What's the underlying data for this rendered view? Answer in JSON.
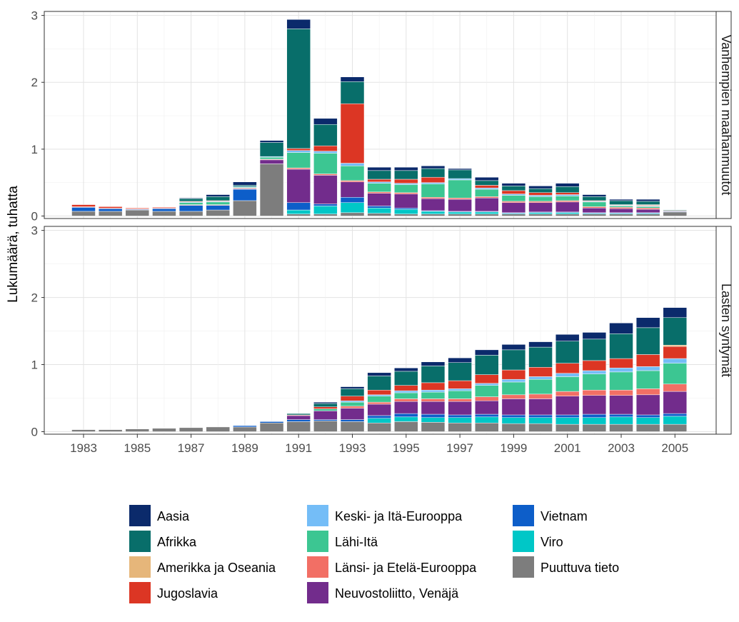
{
  "chart_data": {
    "type": "bar",
    "stacked": true,
    "facet_layout": "two stacked panels sharing the x axis, facet labels on the right",
    "ylabel": "Lukumäärä, tuhatta",
    "xlabel": "",
    "ylim": [
      0,
      3
    ],
    "yticks": [
      0,
      1,
      2,
      3
    ],
    "xticks": [
      "1983",
      "1985",
      "1987",
      "1989",
      "1991",
      "1993",
      "1995",
      "1997",
      "1999",
      "2001",
      "2003",
      "2005"
    ],
    "grid": true,
    "legend_position": "bottom",
    "categories": [
      "1983",
      "1984",
      "1985",
      "1986",
      "1987",
      "1988",
      "1989",
      "1990",
      "1991",
      "1992",
      "1993",
      "1994",
      "1995",
      "1996",
      "1997",
      "1998",
      "1999",
      "2000",
      "2001",
      "2002",
      "2003",
      "2004",
      "2005"
    ],
    "stack_order": [
      "Puuttuva tieto",
      "Viro",
      "Vietnam",
      "Neuvostoliitto, Venäjä",
      "Länsi- ja Etelä-Eurooppa",
      "Lähi-Itä",
      "Keski- ja Itä-Eurooppa",
      "Jugoslavia",
      "Amerikka ja Oseania",
      "Afrikka",
      "Aasia"
    ],
    "legend_entries": [
      {
        "name": "Aasia",
        "color": "#0b2a6b"
      },
      {
        "name": "Afrikka",
        "color": "#086e6a"
      },
      {
        "name": "Amerikka ja Oseania",
        "color": "#e6b67a"
      },
      {
        "name": "Jugoslavia",
        "color": "#dc3624"
      },
      {
        "name": "Keski- ja Itä-Eurooppa",
        "color": "#74bdf7"
      },
      {
        "name": "Lähi-Itä",
        "color": "#3cc692"
      },
      {
        "name": "Länsi- ja Etelä-Eurooppa",
        "color": "#f26f65"
      },
      {
        "name": "Neuvostoliitto, Venäjä",
        "color": "#722c8c"
      },
      {
        "name": "Vietnam",
        "color": "#0d5ec9"
      },
      {
        "name": "Viro",
        "color": "#00c7c7"
      },
      {
        "name": "Puuttuva tieto",
        "color": "#7d7d7d"
      }
    ],
    "panels": [
      {
        "facet_label": "Vanhempien maahanmuutot",
        "series": [
          {
            "name": "Puuttuva tieto",
            "values": [
              0.07,
              0.07,
              0.09,
              0.07,
              0.07,
              0.09,
              0.23,
              0.78,
              0.03,
              0.03,
              0.05,
              0.04,
              0.03,
              0.03,
              0.03,
              0.03,
              0.03,
              0.03,
              0.03,
              0.03,
              0.03,
              0.03,
              0.06
            ]
          },
          {
            "name": "Viro",
            "values": [
              0,
              0,
              0,
              0,
              0,
              0,
              0,
              0,
              0.06,
              0.12,
              0.15,
              0.08,
              0.07,
              0.04,
              0.03,
              0.03,
              0.01,
              0.02,
              0.02,
              0.01,
              0.01,
              0.01,
              0
            ]
          },
          {
            "name": "Vietnam",
            "values": [
              0.06,
              0.04,
              0.01,
              0.04,
              0.09,
              0.07,
              0.17,
              0,
              0.11,
              0.03,
              0.08,
              0.03,
              0.02,
              0.01,
              0.01,
              0.01,
              0.01,
              0.01,
              0.01,
              0.01,
              0.01,
              0.01,
              0.01
            ]
          },
          {
            "name": "Neuvostoliitto, Venäjä",
            "values": [
              0,
              0,
              0,
              0,
              0,
              0,
              0.01,
              0.06,
              0.5,
              0.43,
              0.23,
              0.19,
              0.21,
              0.18,
              0.18,
              0.2,
              0.15,
              0.14,
              0.15,
              0.07,
              0.06,
              0.05,
              0
            ]
          },
          {
            "name": "Länsi- ja Etelä-Eurooppa",
            "values": [
              0.01,
              0.01,
              0.01,
              0.01,
              0.01,
              0.01,
              0.01,
              0.01,
              0.02,
              0.02,
              0.02,
              0.02,
              0.02,
              0.02,
              0.02,
              0.02,
              0.02,
              0.02,
              0.02,
              0.02,
              0.02,
              0.02,
              0.01
            ]
          },
          {
            "name": "Lähi-Itä",
            "values": [
              0,
              0,
              0,
              0,
              0.03,
              0.04,
              0.01,
              0.03,
              0.23,
              0.31,
              0.22,
              0.13,
              0.12,
              0.2,
              0.27,
              0.11,
              0.09,
              0.07,
              0.07,
              0.07,
              0.02,
              0.02,
              0
            ]
          },
          {
            "name": "Keski- ja Itä-Eurooppa",
            "values": [
              0,
              0,
              0,
              0,
              0.01,
              0.01,
              0.01,
              0.01,
              0.03,
              0.03,
              0.04,
              0.02,
              0.02,
              0.02,
              0.02,
              0.02,
              0.02,
              0.02,
              0.02,
              0.01,
              0.01,
              0.01,
              0
            ]
          },
          {
            "name": "Jugoslavia",
            "values": [
              0.03,
              0.02,
              0.01,
              0.01,
              0.01,
              0.01,
              0,
              0,
              0.03,
              0.08,
              0.89,
              0.04,
              0.06,
              0.08,
              0,
              0.04,
              0.05,
              0.04,
              0.03,
              0.01,
              0,
              0.01,
              0
            ]
          },
          {
            "name": "Amerikka ja Oseania",
            "values": [
              0,
              0,
              0,
              0,
              0,
              0,
              0,
              0,
              0,
              0,
              0,
              0,
              0,
              0,
              0,
              0,
              0,
              0,
              0,
              0,
              0.01,
              0.01,
              0
            ]
          },
          {
            "name": "Afrikka",
            "values": [
              0,
              0,
              0,
              0,
              0.04,
              0.06,
              0.02,
              0.21,
              1.79,
              0.32,
              0.33,
              0.13,
              0.13,
              0.13,
              0.13,
              0.07,
              0.07,
              0.06,
              0.09,
              0.06,
              0.06,
              0.05,
              0.01
            ]
          },
          {
            "name": "Aasia",
            "values": [
              0,
              0,
              0,
              0,
              0.01,
              0.03,
              0.05,
              0.03,
              0.14,
              0.09,
              0.07,
              0.05,
              0.05,
              0.04,
              0.02,
              0.05,
              0.04,
              0.04,
              0.05,
              0.03,
              0.02,
              0.03,
              0
            ]
          }
        ]
      },
      {
        "facet_label": "Lasten syntymät",
        "series": [
          {
            "name": "Puuttuva tieto",
            "values": [
              0.03,
              0.03,
              0.04,
              0.05,
              0.06,
              0.07,
              0.07,
              0.13,
              0.15,
              0.16,
              0.15,
              0.13,
              0.15,
              0.14,
              0.13,
              0.13,
              0.12,
              0.12,
              0.11,
              0.11,
              0.11,
              0.11,
              0.11
            ]
          },
          {
            "name": "Viro",
            "values": [
              0,
              0,
              0,
              0,
              0,
              0,
              0,
              0,
              0,
              0,
              0,
              0.07,
              0.07,
              0.07,
              0.08,
              0.09,
              0.09,
              0.09,
              0.1,
              0.1,
              0.11,
              0.1,
              0.12
            ]
          },
          {
            "name": "Vietnam",
            "values": [
              0,
              0,
              0,
              0,
              0,
              0,
              0.02,
              0.02,
              0.03,
              0.02,
              0.03,
              0.04,
              0.05,
              0.05,
              0.04,
              0.04,
              0.04,
              0.04,
              0.04,
              0.05,
              0.04,
              0.04,
              0.04
            ]
          },
          {
            "name": "Neuvostoliitto, Venäjä",
            "values": [
              0,
              0,
              0,
              0,
              0,
              0,
              0,
              0,
              0.06,
              0.13,
              0.17,
              0.17,
              0.18,
              0.19,
              0.2,
              0.2,
              0.24,
              0.24,
              0.28,
              0.28,
              0.28,
              0.3,
              0.33
            ]
          },
          {
            "name": "Länsi- ja Etelä-Eurooppa",
            "values": [
              0,
              0,
              0,
              0,
              0,
              0,
              0,
              0,
              0,
              0,
              0.03,
              0.03,
              0.04,
              0.04,
              0.04,
              0.06,
              0.06,
              0.07,
              0.07,
              0.08,
              0.08,
              0.09,
              0.11
            ]
          },
          {
            "name": "Lähi-Itä",
            "values": [
              0,
              0,
              0,
              0,
              0,
              0,
              0,
              0,
              0,
              0.03,
              0.06,
              0.09,
              0.09,
              0.1,
              0.12,
              0.17,
              0.19,
              0.22,
              0.22,
              0.24,
              0.27,
              0.27,
              0.31
            ]
          },
          {
            "name": "Keski- ja Itä-Eurooppa",
            "values": [
              0,
              0,
              0,
              0,
              0,
              0,
              0,
              0,
              0,
              0,
              0.02,
              0.02,
              0.03,
              0.03,
              0.03,
              0.03,
              0.04,
              0.04,
              0.05,
              0.05,
              0.06,
              0.06,
              0.07
            ]
          },
          {
            "name": "Jugoslavia",
            "values": [
              0,
              0,
              0,
              0,
              0,
              0,
              0,
              0,
              0.01,
              0.03,
              0.07,
              0.07,
              0.08,
              0.11,
              0.12,
              0.13,
              0.14,
              0.14,
              0.15,
              0.15,
              0.14,
              0.18,
              0.18
            ]
          },
          {
            "name": "Amerikka ja Oseania",
            "values": [
              0,
              0,
              0,
              0,
              0,
              0,
              0,
              0,
              0,
              0,
              0,
              0,
              0,
              0,
              0,
              0,
              0,
              0,
              0,
              0,
              0,
              0,
              0.02
            ]
          },
          {
            "name": "Afrikka",
            "values": [
              0,
              0,
              0,
              0,
              0,
              0,
              0,
              0,
              0.02,
              0.05,
              0.11,
              0.21,
              0.21,
              0.25,
              0.27,
              0.29,
              0.3,
              0.3,
              0.33,
              0.32,
              0.37,
              0.4,
              0.41
            ]
          },
          {
            "name": "Aasia",
            "values": [
              0,
              0,
              0,
              0,
              0,
              0,
              0,
              0,
              0,
              0.02,
              0.03,
              0.05,
              0.05,
              0.06,
              0.07,
              0.08,
              0.08,
              0.08,
              0.1,
              0.1,
              0.16,
              0.15,
              0.15
            ]
          }
        ]
      }
    ]
  }
}
